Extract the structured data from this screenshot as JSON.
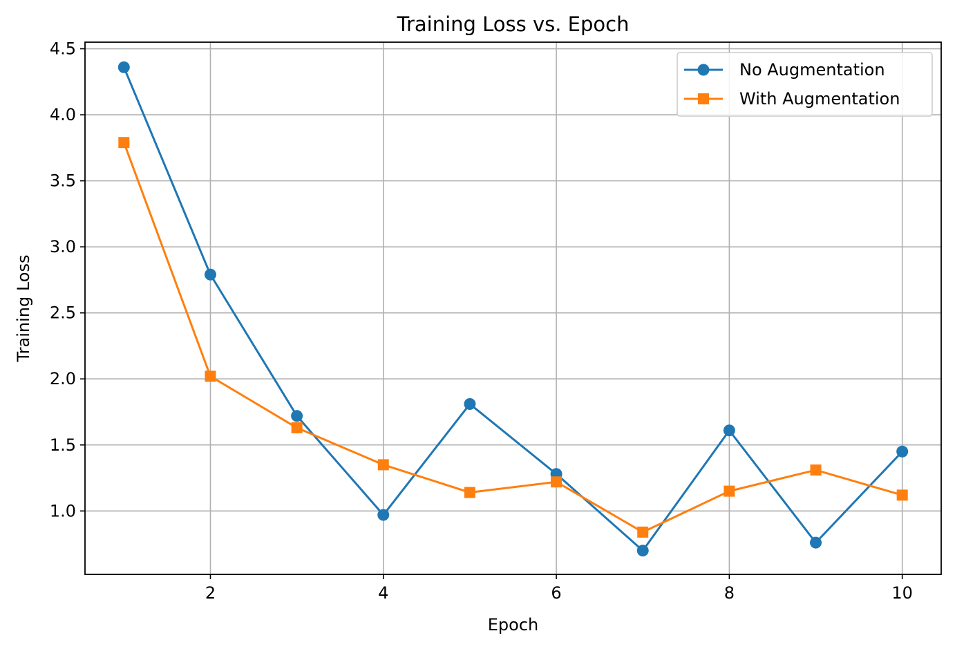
{
  "chart_data": {
    "type": "line",
    "title": "Training Loss vs. Epoch",
    "xlabel": "Epoch",
    "ylabel": "Training Loss",
    "x": [
      1,
      2,
      3,
      4,
      5,
      6,
      7,
      8,
      9,
      10
    ],
    "xlim": [
      0.55,
      10.45
    ],
    "ylim": [
      0.52,
      4.55
    ],
    "xticks": [
      2,
      4,
      6,
      8,
      10
    ],
    "yticks": [
      1.0,
      1.5,
      2.0,
      2.5,
      3.0,
      3.5,
      4.0,
      4.5
    ],
    "xtick_labels": [
      "2",
      "4",
      "6",
      "8",
      "10"
    ],
    "ytick_labels": [
      "1.0",
      "1.5",
      "2.0",
      "2.5",
      "3.0",
      "3.5",
      "4.0",
      "4.5"
    ],
    "grid": true,
    "legend_position": "top-right",
    "series": [
      {
        "name": "No Augmentation",
        "color": "#1f77b4",
        "marker": "circle",
        "values": [
          4.36,
          2.79,
          1.72,
          0.97,
          1.81,
          1.28,
          0.7,
          1.61,
          0.76,
          1.45
        ]
      },
      {
        "name": "With Augmentation",
        "color": "#ff7f0e",
        "marker": "square",
        "values": [
          3.79,
          2.02,
          1.63,
          1.35,
          1.14,
          1.22,
          0.84,
          1.15,
          1.31,
          1.12
        ]
      }
    ]
  }
}
